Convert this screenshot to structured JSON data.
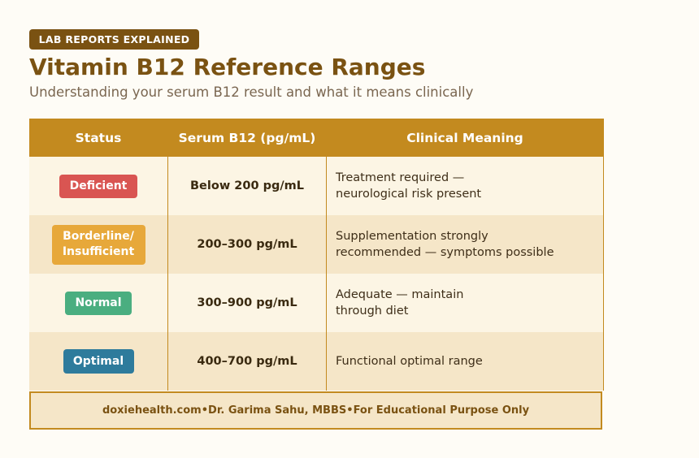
{
  "header": {
    "tag": "LAB REPORTS EXPLAINED",
    "title": "Vitamin B12 Reference Ranges",
    "subtitle": "Understanding your serum B12 result and what it means clinically"
  },
  "table": {
    "columns": [
      "Status",
      "Serum B12 (pg/mL)",
      "Clinical Meaning"
    ],
    "rows": [
      {
        "status": "Deficient",
        "status_color": "#d95552",
        "range": "Below 200 pg/mL",
        "meaning_line1": "Treatment required —",
        "meaning_line2": "neurological risk present"
      },
      {
        "status_line1": "Borderline/",
        "status_line2": "Insufficient",
        "status_color": "#e7a83a",
        "range": "200–300 pg/mL",
        "meaning_line1": "Supplementation strongly",
        "meaning_line2": "recommended — symptoms possible"
      },
      {
        "status": "Normal",
        "status_color": "#4aae80",
        "range": "300–900 pg/mL",
        "meaning_line1": "Adequate — maintain",
        "meaning_line2": "through diet"
      },
      {
        "status": "Optimal",
        "status_color": "#2e7b9c",
        "range": "400–700 pg/mL",
        "meaning_line1": "Functional optimal range"
      }
    ]
  },
  "footer": {
    "site": "doxiehealth.com",
    "author": "Dr. Garima Sahu, MBBS",
    "disclaimer": "For Educational Purpose Only",
    "separator": "•"
  },
  "colors": {
    "brand_brown": "#7a5212",
    "header_gold": "#c38a1f",
    "row_light": "#fcf5e4",
    "row_dark": "#f5e6c8",
    "page_bg": "#fefcf6"
  }
}
